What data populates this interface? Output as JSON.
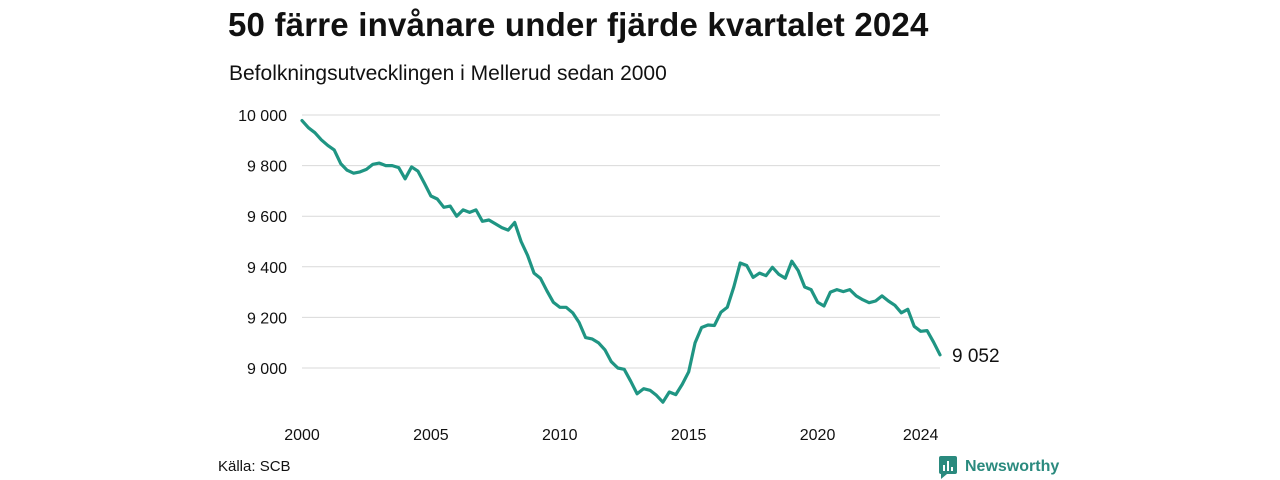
{
  "title": "50 färre invånare under fjärde kvartalet 2024",
  "subtitle": "Befolkningsutvecklingen i Mellerud sedan 2000",
  "source": "Källa: SCB",
  "brand": {
    "name": "Newsworthy",
    "color": "#2a8a7e"
  },
  "chart_data": {
    "type": "line",
    "title": "50 färre invånare under fjärde kvartalet 2024",
    "subtitle": "Befolkningsutvecklingen i Mellerud sedan 2000",
    "xlabel": "",
    "ylabel": "",
    "xlim": [
      2000,
      2024.75
    ],
    "ylim": [
      8850,
      10050
    ],
    "x_ticks": [
      2000,
      2005,
      2010,
      2015,
      2020,
      2024
    ],
    "y_ticks": [
      9000,
      9200,
      9400,
      9600,
      9800,
      10000
    ],
    "y_tick_labels": [
      "9 000",
      "9 200",
      "9 400",
      "9 600",
      "9 800",
      "10 000"
    ],
    "grid": "horizontal",
    "line_color": "#1f9583",
    "end_label": "9 052",
    "series": [
      {
        "x": [
          2000.0,
          2000.25,
          2000.5,
          2000.75,
          2001.0,
          2001.25,
          2001.5,
          2001.75,
          2002.0,
          2002.25,
          2002.5,
          2002.75,
          2003.0,
          2003.25,
          2003.5,
          2003.75,
          2004.0,
          2004.25,
          2004.5,
          2004.75,
          2005.0,
          2005.25,
          2005.5,
          2005.75,
          2006.0,
          2006.25,
          2006.5,
          2006.75,
          2007.0,
          2007.25,
          2007.5,
          2007.75,
          2008.0,
          2008.25,
          2008.5,
          2008.75,
          2009.0,
          2009.25,
          2009.5,
          2009.75,
          2010.0,
          2010.25,
          2010.5,
          2010.75,
          2011.0,
          2011.25,
          2011.5,
          2011.75,
          2012.0,
          2012.25,
          2012.5,
          2012.75,
          2013.0,
          2013.25,
          2013.5,
          2013.75,
          2014.0,
          2014.25,
          2014.5,
          2014.75,
          2015.0,
          2015.25,
          2015.5,
          2015.75,
          2016.0,
          2016.25,
          2016.5,
          2016.75,
          2017.0,
          2017.25,
          2017.5,
          2017.75,
          2018.0,
          2018.25,
          2018.5,
          2018.75,
          2019.0,
          2019.25,
          2019.5,
          2019.75,
          2020.0,
          2020.25,
          2020.5,
          2020.75,
          2021.0,
          2021.25,
          2021.5,
          2021.75,
          2022.0,
          2022.25,
          2022.5,
          2022.75,
          2023.0,
          2023.25,
          2023.5,
          2023.75,
          2024.0,
          2024.25,
          2024.5,
          2024.75
        ],
        "values": [
          9978,
          9950,
          9930,
          9902,
          9880,
          9862,
          9808,
          9782,
          9770,
          9775,
          9785,
          9805,
          9810,
          9800,
          9800,
          9792,
          9748,
          9795,
          9778,
          9730,
          9680,
          9668,
          9635,
          9640,
          9600,
          9625,
          9615,
          9625,
          9580,
          9585,
          9570,
          9555,
          9545,
          9575,
          9500,
          9445,
          9375,
          9355,
          9305,
          9260,
          9240,
          9240,
          9218,
          9180,
          9120,
          9115,
          9100,
          9072,
          9025,
          9000,
          8995,
          8948,
          8898,
          8918,
          8912,
          8892,
          8865,
          8905,
          8895,
          8935,
          8985,
          9100,
          9160,
          9170,
          9168,
          9220,
          9240,
          9320,
          9415,
          9405,
          9358,
          9375,
          9365,
          9398,
          9370,
          9355,
          9422,
          9385,
          9320,
          9310,
          9260,
          9245,
          9300,
          9310,
          9302,
          9310,
          9285,
          9270,
          9258,
          9265,
          9285,
          9265,
          9248,
          9218,
          9232,
          9165,
          9145,
          9148,
          9102,
          9052
        ]
      }
    ]
  }
}
